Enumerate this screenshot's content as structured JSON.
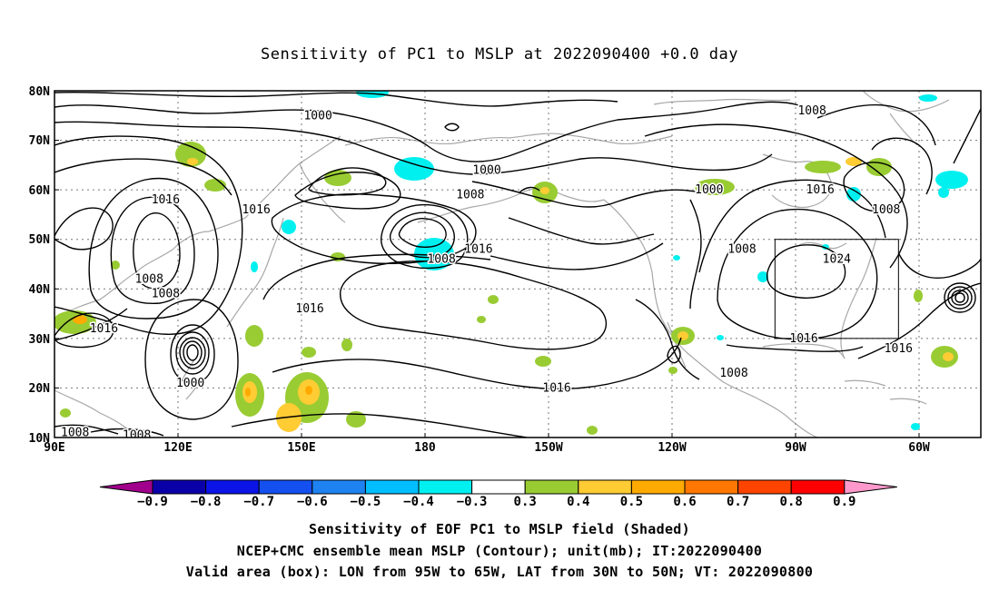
{
  "title": "Sensitivity of PC1 to MSLP at 2022090400 +0.0 day",
  "map": {
    "lon_ticks": [
      "90E",
      "120E",
      "150E",
      "180",
      "150W",
      "120W",
      "90W",
      "60W"
    ],
    "lat_ticks": [
      "10N",
      "20N",
      "30N",
      "40N",
      "50N",
      "60N",
      "70N",
      "80N"
    ],
    "lon_range": [
      90,
      315
    ],
    "lat_range": [
      10,
      80
    ],
    "grid": "dotted",
    "valid_box": {
      "lon_w": -95,
      "lon_e": -65,
      "lat_s": 30,
      "lat_n": 50
    },
    "contour_labels": [
      {
        "text": "1000",
        "lon": 154,
        "lat": 75
      },
      {
        "text": "1008",
        "lon": 274,
        "lat": 76
      },
      {
        "text": "1000",
        "lon": 195,
        "lat": 64
      },
      {
        "text": "1008",
        "lon": 191,
        "lat": 59
      },
      {
        "text": "1000",
        "lon": 249,
        "lat": 60
      },
      {
        "text": "1016",
        "lon": 117,
        "lat": 58
      },
      {
        "text": "1016",
        "lon": 139,
        "lat": 56
      },
      {
        "text": "1016",
        "lon": 276,
        "lat": 60
      },
      {
        "text": "1008",
        "lon": 292,
        "lat": 56
      },
      {
        "text": "1008",
        "lon": 257,
        "lat": 48
      },
      {
        "text": "1016",
        "lon": 193,
        "lat": 48
      },
      {
        "text": "1008",
        "lon": 184,
        "lat": 46
      },
      {
        "text": "1024",
        "lon": 280,
        "lat": 46
      },
      {
        "text": "1008",
        "lon": 113,
        "lat": 42
      },
      {
        "text": "1008",
        "lon": 117,
        "lat": 39
      },
      {
        "text": "1016",
        "lon": 152,
        "lat": 36
      },
      {
        "text": "1016",
        "lon": 102,
        "lat": 32
      },
      {
        "text": "1016",
        "lon": 272,
        "lat": 30
      },
      {
        "text": "1016",
        "lon": 295,
        "lat": 28
      },
      {
        "text": "1000",
        "lon": 123,
        "lat": 21
      },
      {
        "text": "1008",
        "lon": 255,
        "lat": 23
      },
      {
        "text": "1016",
        "lon": 212,
        "lat": 20
      },
      {
        "text": "1008",
        "lon": 95,
        "lat": 11
      },
      {
        "text": "1008",
        "lon": 110,
        "lat": 10.5
      }
    ]
  },
  "colorbar": {
    "labels": [
      "−0.9",
      "−0.8",
      "−0.7",
      "−0.6",
      "−0.5",
      "−0.4",
      "−0.3",
      "0.3",
      "0.4",
      "0.5",
      "0.6",
      "0.7",
      "0.8",
      "0.9"
    ],
    "colors": [
      "#a0008c",
      "#0a00a8",
      "#0a14e6",
      "#1450f0",
      "#1e82f0",
      "#00beff",
      "#00f0f0",
      "#ffffff",
      "#99cc33",
      "#ffcc33",
      "#ffaa00",
      "#ff7700",
      "#ff4400",
      "#ff0000",
      "#ff99cc"
    ]
  },
  "captions": {
    "line1": "Sensitivity of EOF PC1 to MSLP field (Shaded)",
    "line2": "NCEP+CMC ensemble mean MSLP (Contour); unit(mb); IT:2022090400",
    "line3": "Valid area (box): LON from 95W to 65W, LAT from 30N to 50N; VT: 2022090800"
  }
}
